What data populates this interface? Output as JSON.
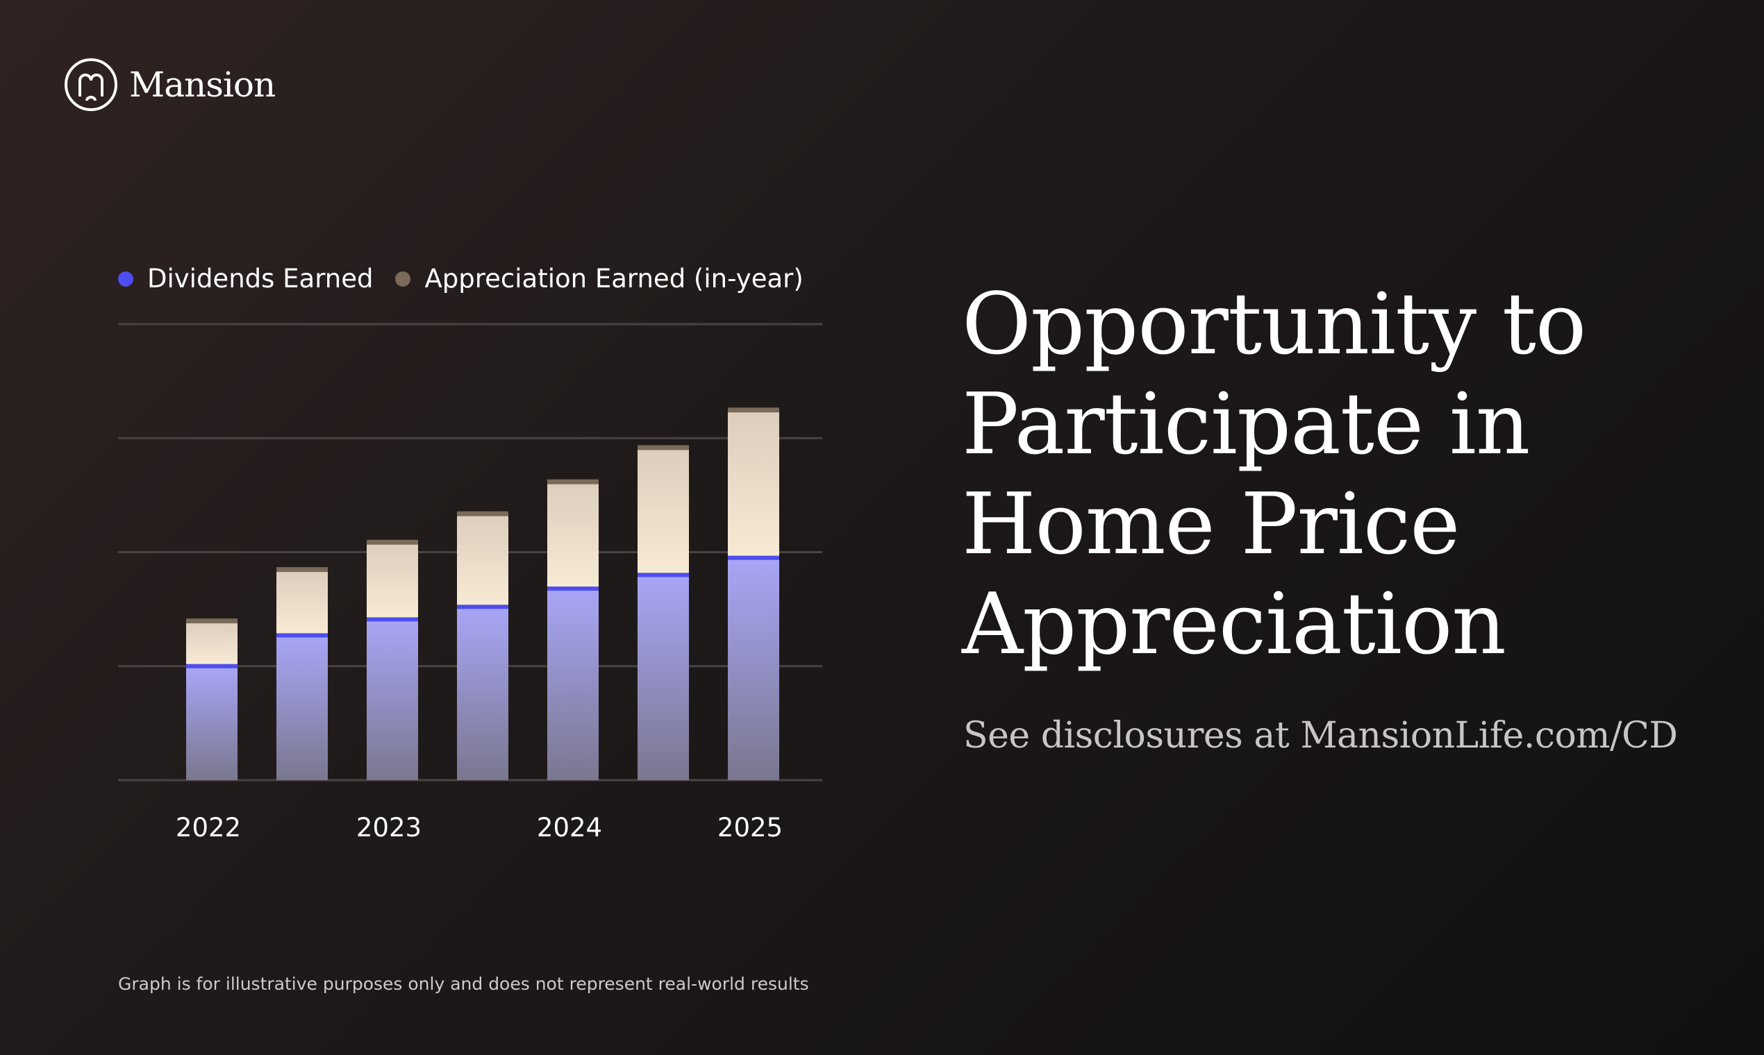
{
  "brand": {
    "name": "Mansion",
    "logo_icon": "mansion-monogram-icon"
  },
  "headline": "Opportunity to Participate in Home Price Appreciation",
  "disclosure": "See disclosures at MansionLife.com/CD",
  "footnote": "Graph is for illustrative purposes only and does not represent real-world results",
  "colors": {
    "dividends": "#4e4ef0",
    "appreciation": "#7a6a5a",
    "background": "#1c1818"
  },
  "chart_data": {
    "type": "bar",
    "stacked": true,
    "grid": true,
    "legend_position": "top-left",
    "ylim": [
      0,
      4
    ],
    "x_tick_labels": [
      "2022",
      "2023",
      "2024",
      "2025"
    ],
    "categories": [
      "",
      "",
      "",
      "",
      "",
      "",
      ""
    ],
    "series": [
      {
        "name": "Dividends Earned",
        "color": "#4e4ef0",
        "values": [
          1.0,
          1.27,
          1.41,
          1.52,
          1.68,
          1.8,
          1.95
        ]
      },
      {
        "name": "Appreciation Earned (in-year)",
        "color": "#7a6a5a",
        "values": [
          0.4,
          0.58,
          0.68,
          0.82,
          0.94,
          1.12,
          1.3
        ]
      }
    ]
  }
}
